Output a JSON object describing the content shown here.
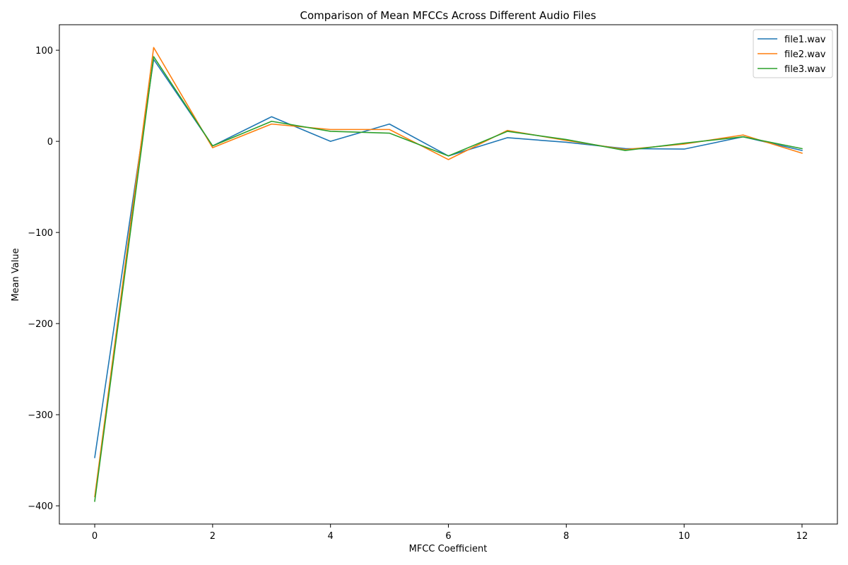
{
  "chart_data": {
    "type": "line",
    "title": "Comparison of Mean MFCCs Across Different Audio Files",
    "xlabel": "MFCC Coefficient",
    "ylabel": "Mean Value",
    "xlim": [
      -0.6,
      12.6
    ],
    "ylim": [
      -420,
      128
    ],
    "xticks": [
      0,
      2,
      4,
      6,
      8,
      10,
      12
    ],
    "yticks": [
      100,
      0,
      -100,
      -200,
      -300,
      -400
    ],
    "ytick_labels": [
      "100",
      "0",
      "−100",
      "−200",
      "−300",
      "−400"
    ],
    "grid": false,
    "legend_position": "top-right",
    "x": [
      0,
      1,
      2,
      3,
      4,
      5,
      6,
      7,
      8,
      9,
      10,
      11,
      12
    ],
    "series": [
      {
        "name": "file1.wav",
        "color": "#1f77b4",
        "values": [
          -347,
          90,
          -5,
          27,
          0,
          19,
          -16,
          4,
          -1,
          -8,
          -8.5,
          5,
          -10
        ]
      },
      {
        "name": "file2.wav",
        "color": "#ff7f0e",
        "values": [
          -390,
          103,
          -7,
          19,
          13,
          13,
          -20,
          12,
          1,
          -9,
          -3,
          7,
          -13
        ]
      },
      {
        "name": "file3.wav",
        "color": "#2ca02c",
        "values": [
          -395,
          93,
          -5,
          22,
          11,
          9,
          -16,
          11,
          2,
          -10,
          -2,
          5,
          -8
        ]
      }
    ]
  }
}
